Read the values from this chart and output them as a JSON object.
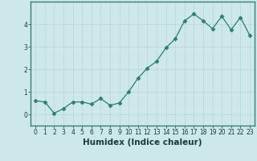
{
  "title": "",
  "xlabel": "Humidex (Indice chaleur)",
  "x": [
    0,
    1,
    2,
    3,
    4,
    5,
    6,
    7,
    8,
    9,
    10,
    11,
    12,
    13,
    14,
    15,
    16,
    17,
    18,
    19,
    20,
    21,
    22,
    23
  ],
  "y": [
    0.6,
    0.55,
    0.05,
    0.25,
    0.55,
    0.55,
    0.45,
    0.7,
    0.4,
    0.5,
    1.0,
    1.6,
    2.05,
    2.35,
    2.95,
    3.35,
    4.15,
    4.45,
    4.15,
    3.8,
    4.35,
    3.75,
    4.3,
    3.5
  ],
  "line_color": "#2e7d6e",
  "marker": "D",
  "marker_size": 2.5,
  "line_width": 0.9,
  "bg_color": "#cce8e8",
  "grid_color": "#b8d4d4",
  "axis_bg": "#cce8e8",
  "ylim": [
    -0.5,
    5.0
  ],
  "xlim": [
    -0.5,
    23.5
  ],
  "yticks": [
    0,
    1,
    2,
    3,
    4
  ],
  "xticks": [
    0,
    1,
    2,
    3,
    4,
    5,
    6,
    7,
    8,
    9,
    10,
    11,
    12,
    13,
    14,
    15,
    16,
    17,
    18,
    19,
    20,
    21,
    22,
    23
  ],
  "tick_fontsize": 5.5,
  "xlabel_fontsize": 7.5,
  "spine_color": "#3d7a7a"
}
